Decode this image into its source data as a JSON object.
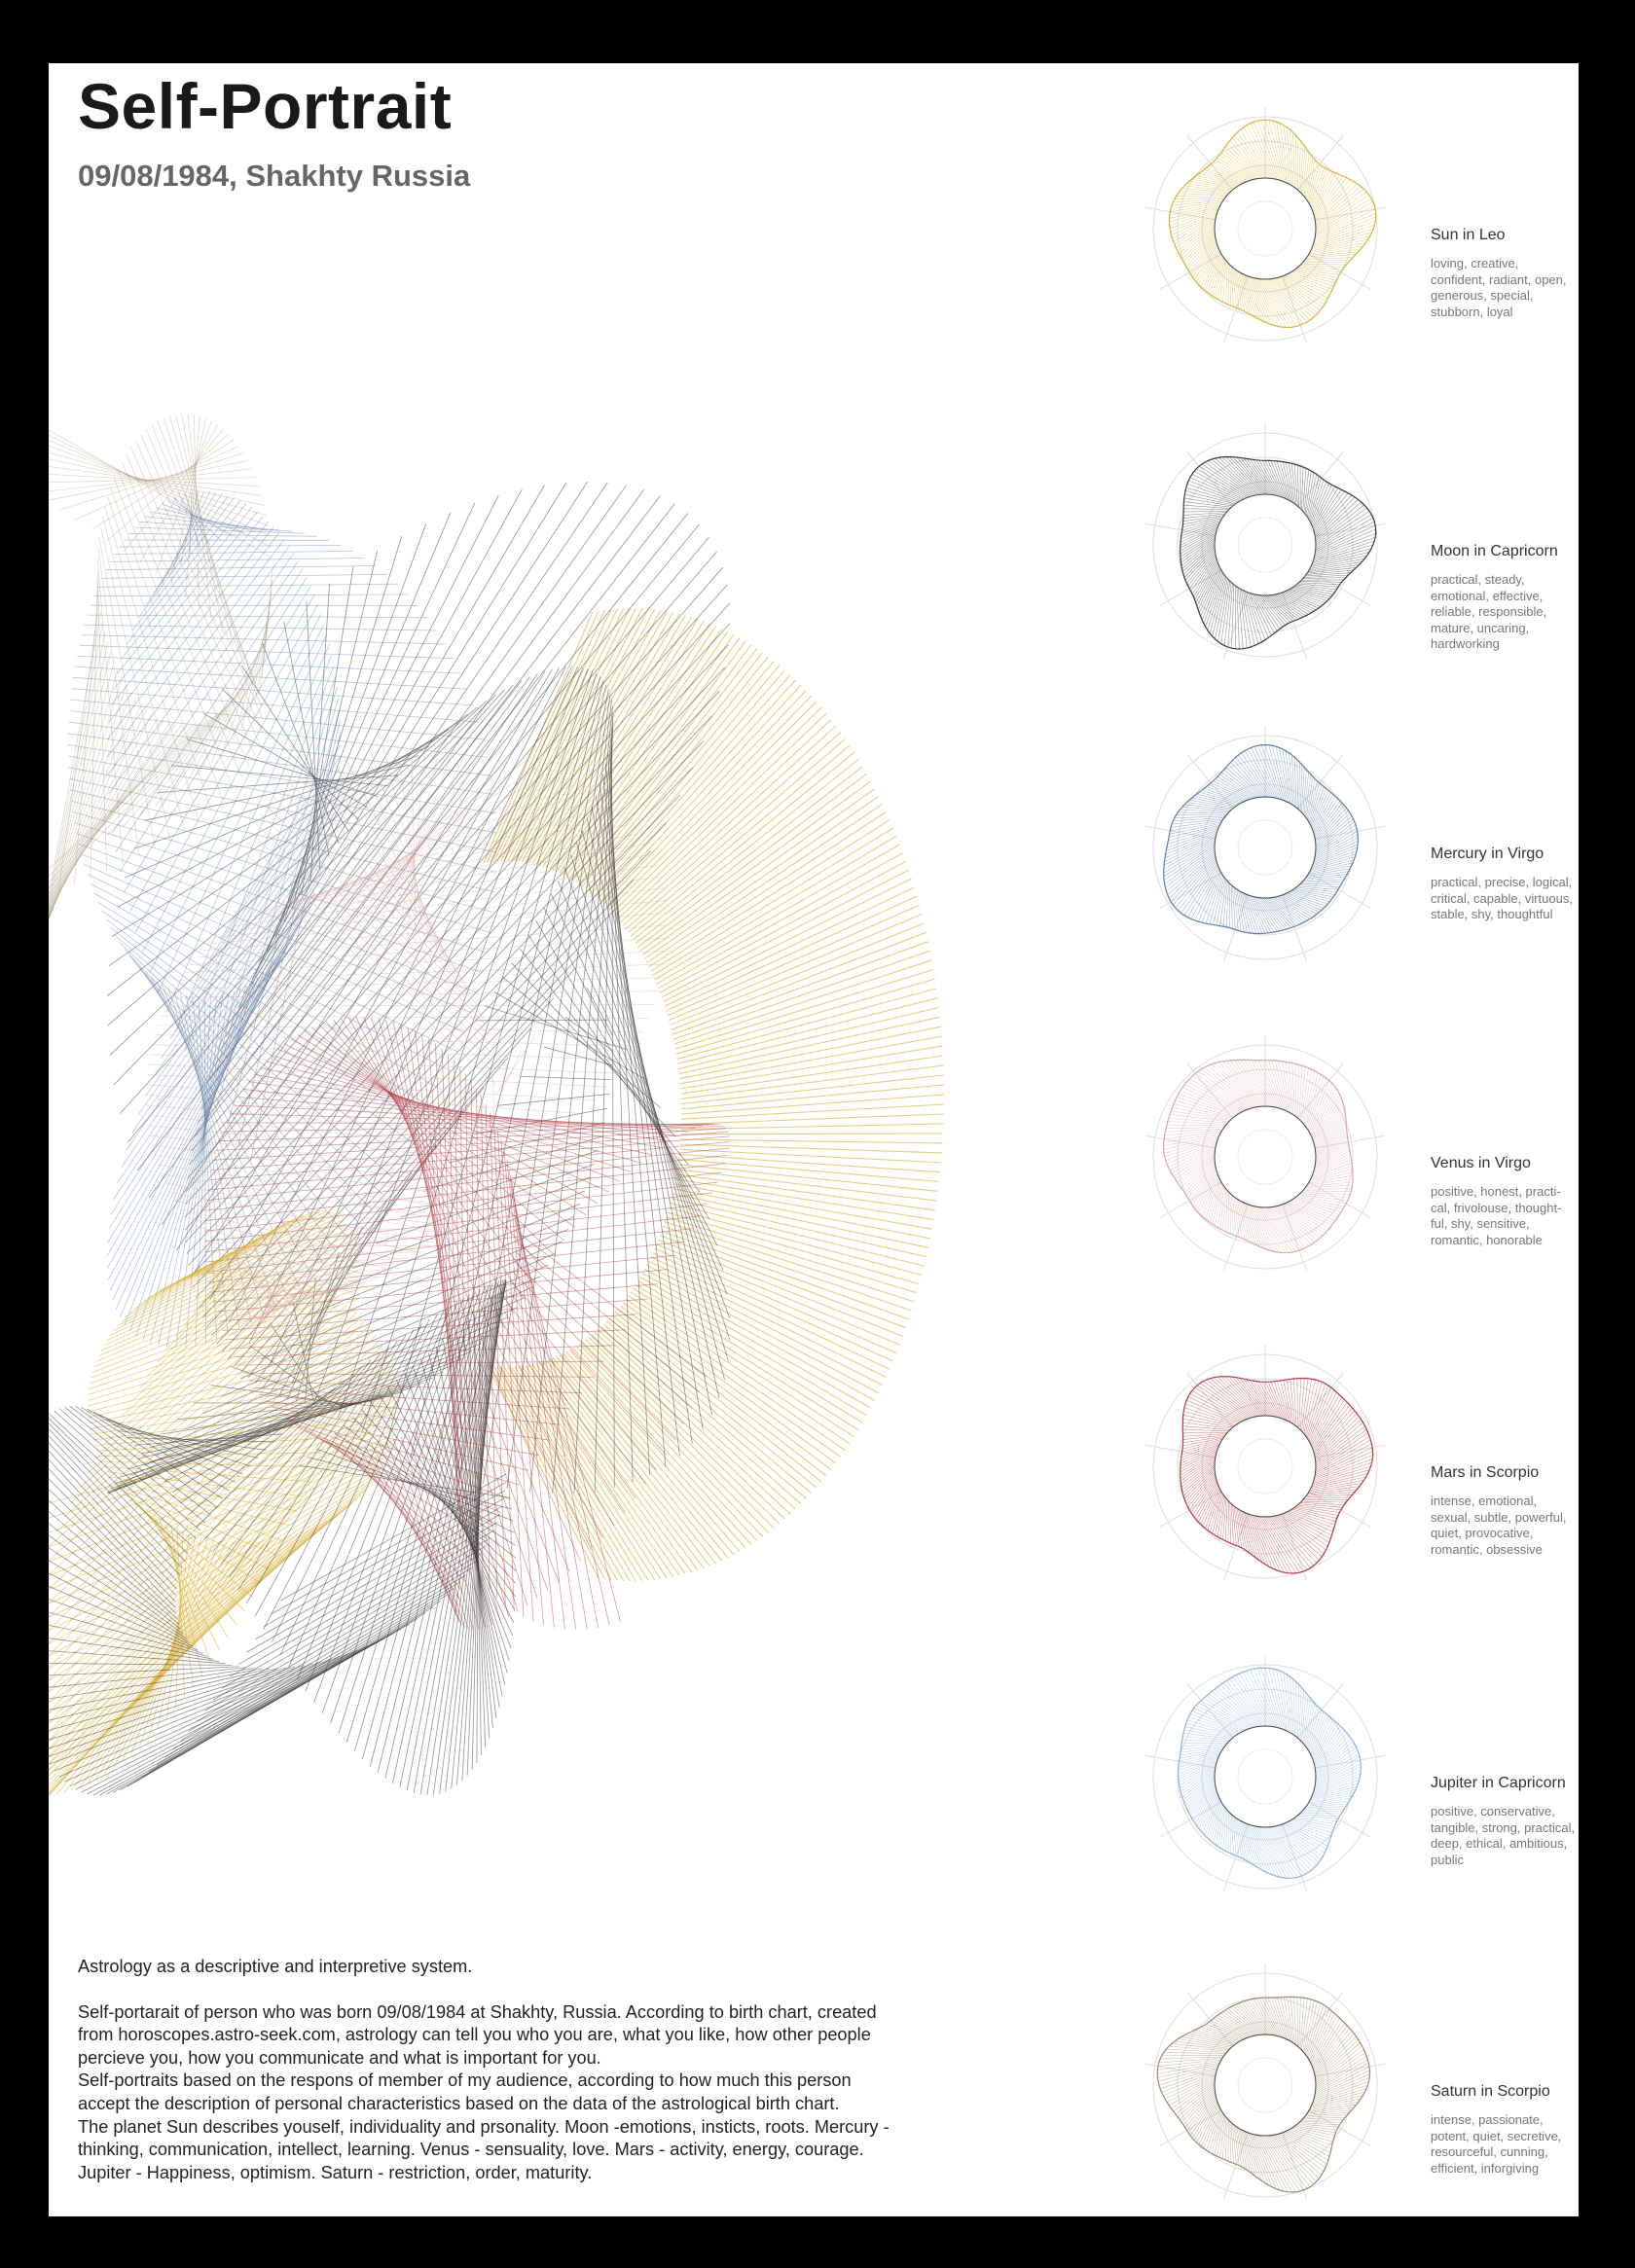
{
  "title": "Self-Portrait",
  "subtitle": "09/08/1984, Shakhty Russia",
  "description": {
    "intro": "Astrology as a descriptive and interpretive system.",
    "paragraphs": [
      "Self-portarait of person who was born 09/08/1984 at Shakhty, Russia. According to birth chart, created from horoscopes.astro-seek.com, astrology can tell you who you are, what you like, how other people percieve you, how you communicate and what is important for you.",
      "Self-portraits based on the respons of member of my audience, according to how much this person accept the description of personal characteristics based on the data of the astrological birth chart.",
      "The planet Sun describes youself, individuality and prsonality. Moon -emotions, insticts, roots. Mercury - thinking, communication, intellect, learning. Venus - sensuality, love. Mars - activity, energy, courage. Jupiter - Happiness, optimism. Saturn - restriction, order, maturity."
    ]
  },
  "planets": [
    {
      "name": "Sun in Leo",
      "color": "#d9b33c",
      "traits": "loving, creative, confident, radiant, open, generous, special, stubborn, loyal"
    },
    {
      "name": "Moon in Capricorn",
      "color": "#3a3a3a",
      "traits": "practical, steady, emotional, effective, reliable, responsible, mature, uncaring, hardworking"
    },
    {
      "name": "Mercury in Virgo",
      "color": "#5f7fa8",
      "traits": "practical, precise, logical, critical, capable, virtuous, stable, shy, thoughtful"
    },
    {
      "name": "Venus in Virgo",
      "color": "#d9a7ab",
      "traits": "positive, honest, practi-cal, frivolouse, thought-ful, shy, sensitive, romantic, honorable"
    },
    {
      "name": "Mars in Scorpio",
      "color": "#b23a44",
      "traits": "intense, emotional, sexual, subtle, powerful, quiet, provocative, romantic, obsessive"
    },
    {
      "name": "Jupiter in Capricorn",
      "color": "#8fb3d6",
      "traits": "positive, conservative, tangible, strong, practical, deep, ethical, ambitious, public"
    },
    {
      "name": "Saturn in Scorpio",
      "color": "#9c8a6a",
      "traits": "intense, passionate, potent, quiet, secretive, resourceful, cunning, efficient, inforgiving"
    }
  ],
  "palette": {
    "gold": "#d9b33c",
    "charcoal": "#3a3a3a",
    "steel": "#5f7fa8",
    "rose": "#d9a7ab",
    "crimson": "#b23a44",
    "sky": "#8fb3d6",
    "taupe": "#9c8a6a"
  }
}
